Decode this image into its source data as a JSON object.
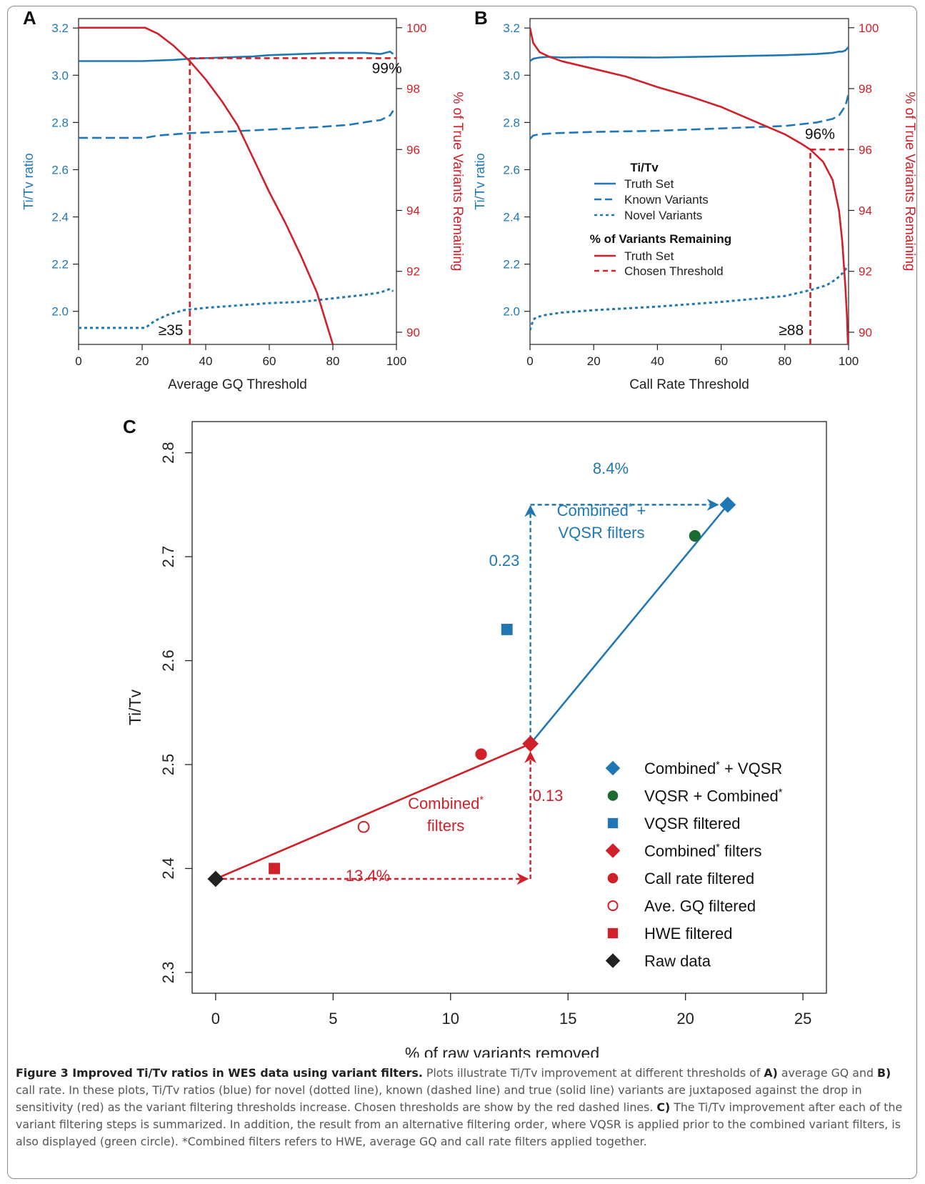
{
  "colors": {
    "blue": "#1f78b4",
    "red": "#d0202a",
    "green": "#1c6b32",
    "black": "#222222"
  },
  "chart_data": [
    {
      "panel": "A",
      "type": "line",
      "xlabel": "Average GQ Threshold",
      "ylabel_left": "Ti/Tv ratio",
      "ylabel_right": "% of True Variants Remaining",
      "xlim": [
        0,
        100
      ],
      "ylim_left": [
        1.86,
        3.24
      ],
      "ylim_right": [
        89.6,
        100.3
      ],
      "x_ticks": [
        0,
        20,
        40,
        60,
        80,
        100
      ],
      "y_ticks_left": [
        2.0,
        2.2,
        2.4,
        2.6,
        2.8,
        3.0,
        3.2
      ],
      "y_ticks_right": [
        90,
        92,
        94,
        96,
        98,
        100
      ],
      "series": [
        {
          "style": "solid",
          "color": "blue",
          "axis": "left",
          "x": [
            0,
            20,
            30,
            35,
            45,
            55,
            60,
            70,
            80,
            90,
            95,
            98,
            99
          ],
          "y": [
            3.06,
            3.06,
            3.065,
            3.07,
            3.075,
            3.08,
            3.085,
            3.09,
            3.095,
            3.095,
            3.09,
            3.1,
            3.09
          ]
        },
        {
          "style": "dashed",
          "color": "blue",
          "axis": "left",
          "x": [
            0,
            21,
            25,
            35,
            45,
            60,
            75,
            85,
            92,
            95,
            98,
            99
          ],
          "y": [
            2.735,
            2.735,
            2.745,
            2.755,
            2.76,
            2.77,
            2.78,
            2.79,
            2.805,
            2.81,
            2.83,
            2.85
          ]
        },
        {
          "style": "dotted",
          "color": "blue",
          "axis": "left",
          "x": [
            0,
            21,
            24,
            28,
            33,
            40,
            50,
            60,
            70,
            80,
            90,
            95,
            98,
            99
          ],
          "y": [
            1.93,
            1.93,
            1.96,
            1.985,
            2.005,
            2.015,
            2.025,
            2.035,
            2.04,
            2.055,
            2.07,
            2.08,
            2.095,
            2.085
          ]
        },
        {
          "style": "solid",
          "color": "red",
          "axis": "right",
          "x": [
            0,
            21,
            25,
            30,
            35,
            40,
            45,
            50,
            55,
            60,
            65,
            70,
            75,
            80
          ],
          "y": [
            100,
            100,
            99.8,
            99.4,
            98.9,
            98.3,
            97.6,
            96.8,
            95.7,
            94.6,
            93.6,
            92.5,
            91.3,
            89.6
          ]
        }
      ],
      "threshold": {
        "x": 35,
        "y_right": 99
      },
      "annotations": [
        {
          "text": "99%",
          "x": 97,
          "y_right": 98.5
        },
        {
          "text": "≥35",
          "x": 29,
          "y_right": 89.9
        }
      ]
    },
    {
      "panel": "B",
      "type": "line",
      "xlabel": "Call Rate Threshold",
      "ylabel_left": "Ti/Tv ratio",
      "ylabel_right": "% of True Variants Remaining",
      "xlim": [
        0,
        100
      ],
      "ylim_left": [
        1.86,
        3.24
      ],
      "ylim_right": [
        89.6,
        100.3
      ],
      "x_ticks": [
        0,
        20,
        40,
        60,
        80,
        100
      ],
      "y_ticks_left": [
        2.0,
        2.2,
        2.4,
        2.6,
        2.8,
        3.0,
        3.2
      ],
      "y_ticks_right": [
        90,
        92,
        94,
        96,
        98,
        100
      ],
      "series": [
        {
          "style": "solid",
          "color": "blue",
          "axis": "left",
          "x": [
            0,
            1,
            3,
            6,
            10,
            20,
            40,
            60,
            80,
            90,
            95,
            97,
            98,
            99,
            100
          ],
          "y": [
            3.06,
            3.07,
            3.075,
            3.078,
            3.075,
            3.077,
            3.075,
            3.08,
            3.085,
            3.09,
            3.095,
            3.1,
            3.1,
            3.105,
            3.12
          ]
        },
        {
          "style": "dashed",
          "color": "blue",
          "axis": "left",
          "x": [
            0,
            1,
            3,
            8,
            20,
            40,
            60,
            80,
            90,
            95,
            97,
            98,
            99,
            100
          ],
          "y": [
            2.73,
            2.745,
            2.75,
            2.755,
            2.76,
            2.765,
            2.775,
            2.785,
            2.8,
            2.815,
            2.83,
            2.85,
            2.87,
            2.92
          ]
        },
        {
          "style": "dotted",
          "color": "blue",
          "axis": "left",
          "x": [
            0,
            1,
            2,
            5,
            10,
            20,
            40,
            60,
            80,
            88,
            93,
            96,
            98,
            100
          ],
          "y": [
            1.92,
            1.965,
            1.975,
            1.985,
            1.995,
            2.005,
            2.02,
            2.04,
            2.065,
            2.09,
            2.11,
            2.135,
            2.16,
            2.195
          ]
        },
        {
          "style": "solid",
          "color": "red",
          "axis": "right",
          "x": [
            0,
            1,
            3,
            6,
            10,
            20,
            30,
            40,
            50,
            60,
            70,
            80,
            85,
            88,
            92,
            95,
            97,
            98,
            99,
            99.5,
            99.8
          ],
          "y": [
            100,
            99.5,
            99.2,
            99.05,
            98.9,
            98.65,
            98.4,
            98.05,
            97.75,
            97.4,
            96.95,
            96.5,
            96.2,
            96.0,
            95.6,
            95.0,
            94.0,
            93.0,
            91.5,
            90.5,
            89.6
          ]
        }
      ],
      "threshold": {
        "x": 88,
        "y_right": 96
      },
      "annotations": [
        {
          "text": "96%",
          "x": 91,
          "y_right": 96.35
        },
        {
          "text": "≥88",
          "x": 82,
          "y_right": 89.9
        }
      ],
      "legend": {
        "position": "center-left",
        "group1_title": "Ti/Tv",
        "group1": [
          "Truth Set",
          "Known Variants",
          "Novel Variants"
        ],
        "group2_title": "% of Variants Remaining",
        "group2": [
          "Truth Set",
          "Chosen Threshold"
        ]
      }
    },
    {
      "panel": "C",
      "type": "scatter",
      "xlabel": "% of raw variants removed",
      "ylabel": "Ti/Tv",
      "xlim": [
        -1,
        26
      ],
      "ylim": [
        2.28,
        2.83
      ],
      "x_ticks": [
        0,
        5,
        10,
        15,
        20,
        25
      ],
      "y_ticks": [
        2.3,
        2.4,
        2.5,
        2.6,
        2.7,
        2.8
      ],
      "points": [
        {
          "label": "Combined* + VQSR",
          "x": 21.8,
          "y": 2.75,
          "marker": "diamond",
          "color": "blue",
          "filled": true
        },
        {
          "label": "VQSR + Combined*",
          "x": 20.4,
          "y": 2.72,
          "marker": "circle",
          "color": "green",
          "filled": true
        },
        {
          "label": "VQSR filtered",
          "x": 12.4,
          "y": 2.63,
          "marker": "square",
          "color": "blue",
          "filled": true
        },
        {
          "label": "Combined* filters",
          "x": 13.4,
          "y": 2.52,
          "marker": "diamond",
          "color": "red",
          "filled": true
        },
        {
          "label": "Call rate filtered",
          "x": 11.3,
          "y": 2.51,
          "marker": "circle",
          "color": "red",
          "filled": true
        },
        {
          "label": "Ave. GQ filtered",
          "x": 6.3,
          "y": 2.44,
          "marker": "circle",
          "color": "red",
          "filled": false
        },
        {
          "label": "HWE filtered",
          "x": 2.5,
          "y": 2.4,
          "marker": "square",
          "color": "red",
          "filled": true
        },
        {
          "label": "Raw data",
          "x": 0,
          "y": 2.39,
          "marker": "diamond",
          "color": "black",
          "filled": true
        }
      ],
      "annotations": [
        {
          "text": "8.4%",
          "color": "blue"
        },
        {
          "text": "0.23",
          "color": "blue"
        },
        {
          "text": "Combined* + VQSR filters",
          "color": "blue"
        },
        {
          "text": "0.13",
          "color": "red"
        },
        {
          "text": "Combined* filters",
          "color": "red"
        },
        {
          "text": "13.4%",
          "color": "red"
        }
      ]
    }
  ],
  "panel_labels": {
    "a": "A",
    "b": "B",
    "c": "C"
  },
  "caption": {
    "title": "Figure 3 Improved Ti/Tv ratios in WES data using variant filters.",
    "t1": " Plots illustrate Ti/Tv improvement at different thresholds of ",
    "a": "A)",
    "t2": " average GQ and ",
    "b": "B)",
    "t3": " call rate. In these plots, Ti/Tv ratios (blue) for novel (dotted line), known (dashed line) and true (solid line) variants are juxtaposed against the drop in sensitivity (red) as the variant filtering thresholds increase. Chosen thresholds are show by the red dashed lines. ",
    "c": "C)",
    "t4": " The Ti/Tv improvement after each of the variant filtering steps is summarized. In addition, the result from an alternative filtering order, where VQSR is applied prior to the combined variant filters, is also displayed (green circle). *Combined filters refers to HWE, average GQ and call rate filters applied together."
  }
}
